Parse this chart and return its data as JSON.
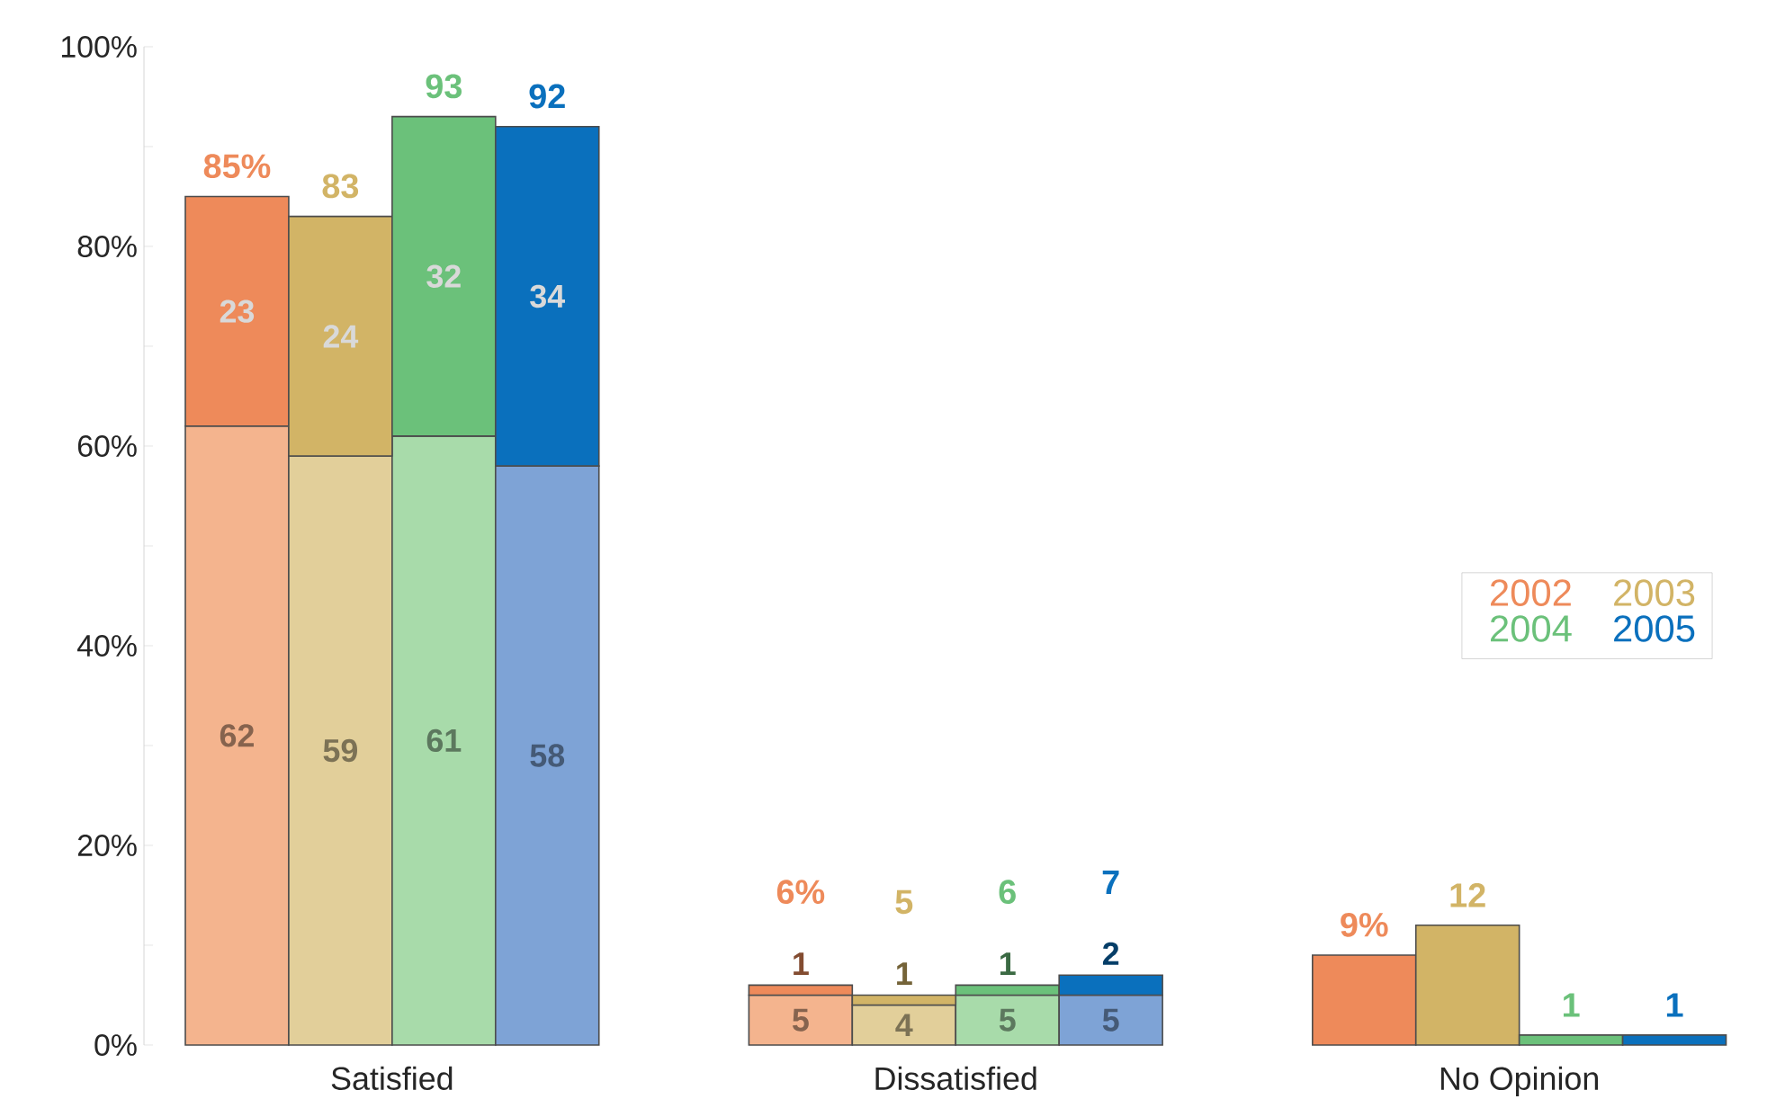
{
  "chart_data": {
    "type": "bar",
    "stacked": true,
    "categories": [
      null,
      null,
      null,
      null,
      null,
      null,
      null,
      null,
      null,
      null,
      null,
      null
    ],
    "series": [
      {
        "color": "#f4b48e",
        "values": [
          62,
          null,
          null,
          null,
          5,
          null,
          null,
          null,
          null,
          null,
          null,
          null
        ],
        "value_labels": [
          "62",
          null,
          null,
          null,
          "5",
          null,
          null,
          null,
          null,
          null,
          null,
          null
        ]
      },
      {
        "color": "#e2cf9a",
        "values": [
          null,
          59,
          null,
          null,
          null,
          4,
          null,
          null,
          null,
          null,
          null,
          null
        ],
        "value_labels": [
          null,
          "59",
          null,
          null,
          null,
          "4",
          null,
          null,
          null,
          null,
          null,
          null
        ]
      },
      {
        "color": "#a8dbaa",
        "values": [
          null,
          null,
          61,
          null,
          null,
          null,
          5,
          null,
          null,
          null,
          null,
          null
        ],
        "value_labels": [
          null,
          null,
          "61",
          null,
          null,
          null,
          "5",
          null,
          null,
          null,
          null,
          null
        ]
      },
      {
        "color": "#7ea3d6",
        "values": [
          null,
          null,
          null,
          58,
          null,
          null,
          null,
          5,
          null,
          null,
          null,
          null
        ],
        "value_labels": [
          null,
          null,
          null,
          "58",
          null,
          null,
          null,
          "5",
          null,
          null,
          null,
          null
        ]
      },
      {
        "name": "2002",
        "color": "#ee8a5a",
        "values": [
          23,
          null,
          null,
          null,
          1,
          null,
          null,
          null,
          9,
          null,
          null,
          null
        ],
        "value_labels": [
          "23",
          null,
          null,
          null,
          "1",
          null,
          null,
          null,
          null,
          null,
          null,
          null
        ]
      },
      {
        "name": "2003",
        "color": "#d2b466",
        "values": [
          null,
          24,
          null,
          null,
          null,
          1,
          null,
          null,
          null,
          12,
          null,
          null
        ],
        "value_labels": [
          null,
          "24",
          null,
          null,
          null,
          "1",
          null,
          null,
          null,
          null,
          null,
          null
        ]
      },
      {
        "name": "2004",
        "color": "#6bc17a",
        "values": [
          null,
          null,
          32,
          null,
          null,
          null,
          1,
          null,
          null,
          null,
          1,
          null
        ],
        "value_labels": [
          null,
          null,
          "32",
          null,
          null,
          null,
          "1",
          null,
          null,
          null,
          null,
          null
        ]
      },
      {
        "name": "2005",
        "color": "#0a70bd",
        "values": [
          null,
          null,
          null,
          34,
          null,
          null,
          null,
          2,
          null,
          null,
          null,
          1
        ],
        "value_labels": [
          null,
          null,
          null,
          "34",
          null,
          null,
          null,
          "2",
          null,
          null,
          null,
          null
        ]
      }
    ],
    "totals": [
      "85%",
      "83",
      "93",
      "92",
      "6%",
      "5",
      "6",
      "7",
      "9%",
      "12",
      "1",
      "1"
    ],
    "annotations": [
      "Satisfied",
      "Dissatisfied",
      "No Opinion"
    ],
    "ylim": [
      0,
      100
    ],
    "yticks": [
      {
        "value": 0,
        "label": "0%"
      },
      {
        "value": 20,
        "label": "20%"
      },
      {
        "value": 40,
        "label": "40%"
      },
      {
        "value": 60,
        "label": "60%"
      },
      {
        "value": 80,
        "label": "80%"
      },
      {
        "value": 100,
        "label": "100%"
      }
    ]
  }
}
